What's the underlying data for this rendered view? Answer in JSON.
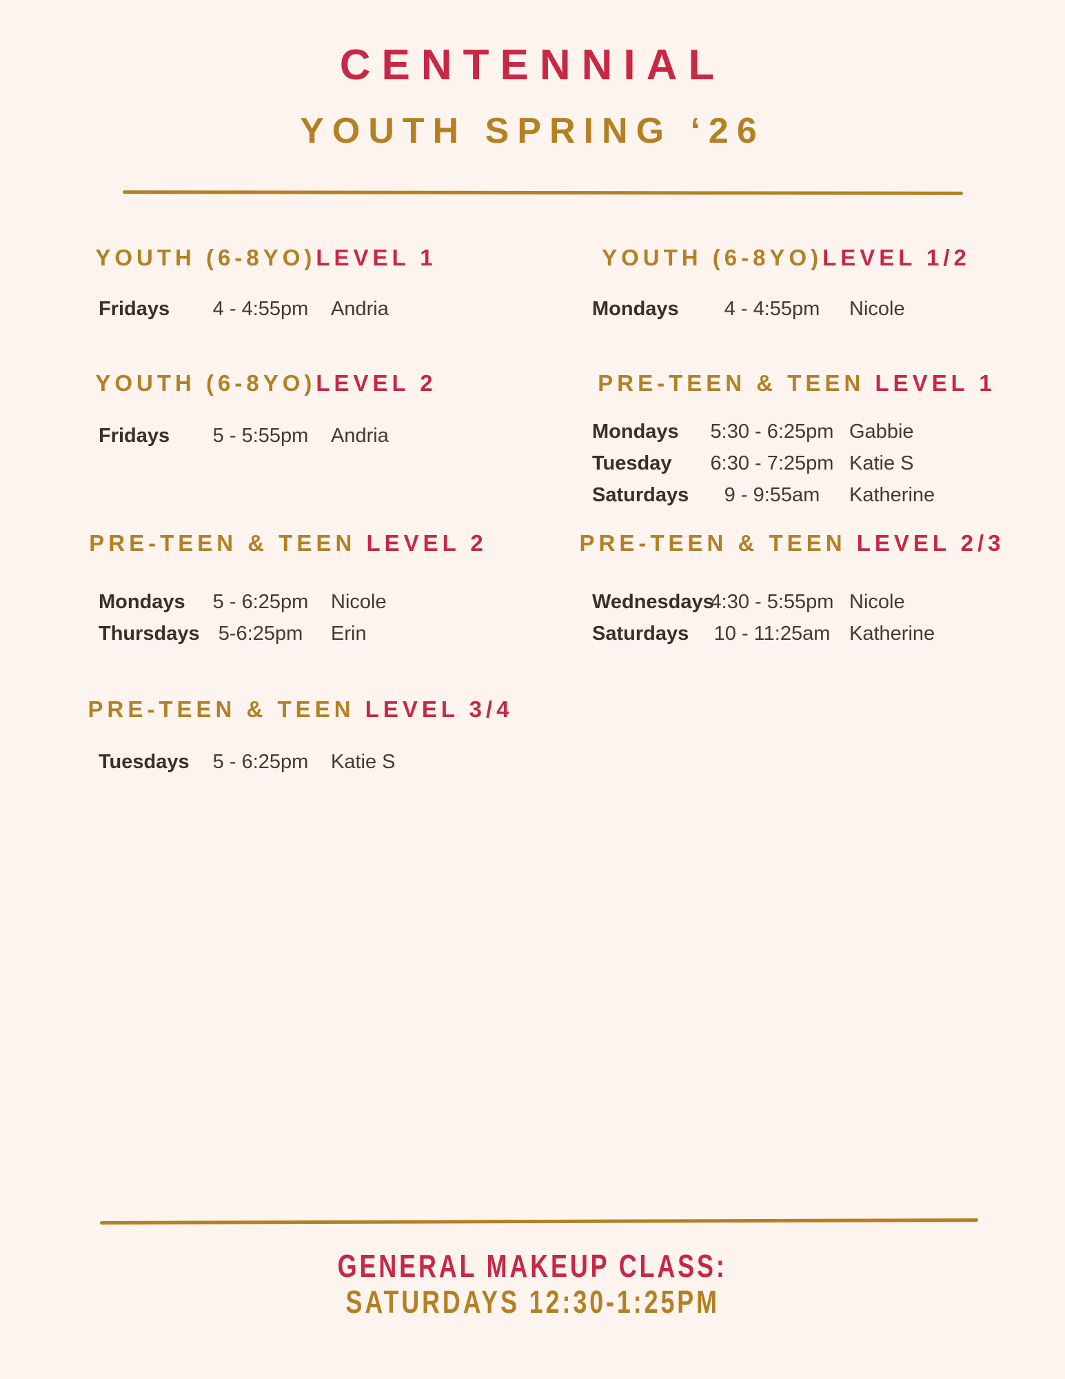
{
  "header": {
    "title": "CENTENNIAL",
    "subtitle": "YOUTH SPRING ‘26"
  },
  "colors": {
    "background": "#fdf3ef",
    "accent_red": "#c62845",
    "accent_gold": "#b28122",
    "text_dark": "#3b3027"
  },
  "sections": [
    {
      "id": "youth-6-8yo-level-1",
      "column": "left",
      "title_gold": "YOUTH (6-8YO)",
      "title_red": "LEVEL 1",
      "rows": [
        {
          "day": "Fridays",
          "time": "4 - 4:55pm",
          "teacher": "Andria"
        }
      ]
    },
    {
      "id": "youth-6-8yo-level-2",
      "column": "left",
      "title_gold": "YOUTH (6-8YO)",
      "title_red": "LEVEL 2",
      "rows": [
        {
          "day": "Fridays",
          "time": "5 - 5:55pm",
          "teacher": "Andria"
        }
      ]
    },
    {
      "id": "preteen-teen-level-2",
      "column": "left",
      "title_gold": "PRE-TEEN & TEEN ",
      "title_red": "LEVEL 2",
      "rows": [
        {
          "day": "Mondays",
          "time": "5 - 6:25pm",
          "teacher": "Nicole"
        },
        {
          "day": "Thursdays",
          "time": "5-6:25pm",
          "teacher": "Erin"
        }
      ]
    },
    {
      "id": "preteen-teen-level-3-4",
      "column": "left",
      "title_gold": "PRE-TEEN & TEEN ",
      "title_red": "LEVEL 3/4",
      "rows": [
        {
          "day": "Tuesdays",
          "time": "5 - 6:25pm",
          "teacher": "Katie S"
        }
      ]
    },
    {
      "id": "youth-6-8yo-level-1-2",
      "column": "right",
      "title_gold": "YOUTH (6-8YO)",
      "title_red": "LEVEL 1/2",
      "rows": [
        {
          "day": "Mondays",
          "time": "4 - 4:55pm",
          "teacher": "Nicole"
        }
      ]
    },
    {
      "id": "preteen-teen-level-1",
      "column": "right",
      "title_gold": "PRE-TEEN & TEEN ",
      "title_red": "LEVEL 1",
      "rows": [
        {
          "day": "Mondays",
          "time": "5:30 - 6:25pm",
          "teacher": "Gabbie"
        },
        {
          "day": "Tuesday",
          "time": "6:30 - 7:25pm",
          "teacher": "Katie S"
        },
        {
          "day": "Saturdays",
          "time": "9 - 9:55am",
          "teacher": "Katherine"
        }
      ]
    },
    {
      "id": "preteen-teen-level-2-3",
      "column": "right",
      "title_gold": "PRE-TEEN & TEEN ",
      "title_red": "LEVEL 2/3",
      "rows": [
        {
          "day": "Wednesdays",
          "time": "4:30 - 5:55pm",
          "teacher": "Nicole"
        },
        {
          "day": "Saturdays",
          "time": "10 - 11:25am",
          "teacher": "Katherine"
        }
      ]
    }
  ],
  "footer": {
    "line1": "GENERAL MAKEUP CLASS:",
    "line2": "SATURDAYS 12:30-1:25PM"
  }
}
